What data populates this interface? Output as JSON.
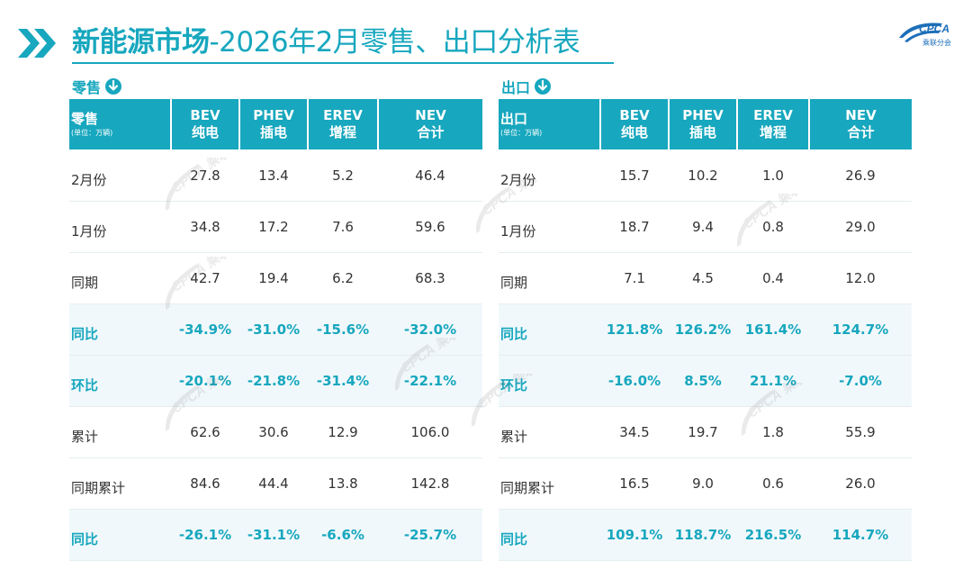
{
  "title": {
    "main": "新能源市场",
    "rest": "-2026年2月零售、出口分析表"
  },
  "logo": {
    "name": "CPCA",
    "sub": "乘联分会"
  },
  "watermark": "CPCA 乘联分会",
  "colors": {
    "accent": "#17a7be"
  },
  "retail": {
    "section_label": "零售",
    "header": {
      "title": "零售",
      "unit": "(单位：万辆)"
    },
    "columns": [
      {
        "code": "BEV",
        "name": "纯电"
      },
      {
        "code": "PHEV",
        "name": "插电"
      },
      {
        "code": "EREV",
        "name": "增程"
      },
      {
        "code": "NEV",
        "name": "合计"
      }
    ],
    "rows": [
      {
        "label": "2月份",
        "values": [
          "27.8",
          "13.4",
          "5.2",
          "46.4"
        ]
      },
      {
        "label": "1月份",
        "values": [
          "34.8",
          "17.2",
          "7.6",
          "59.6"
        ]
      },
      {
        "label": "同期",
        "values": [
          "42.7",
          "19.4",
          "6.2",
          "68.3"
        ]
      },
      {
        "label": "同比",
        "values": [
          "-34.9%",
          "-31.0%",
          "-15.6%",
          "-32.0%"
        ]
      },
      {
        "label": "环比",
        "values": [
          "-20.1%",
          "-21.8%",
          "-31.4%",
          "-22.1%"
        ]
      },
      {
        "label": "累计",
        "values": [
          "62.6",
          "30.6",
          "12.9",
          "106.0"
        ]
      },
      {
        "label": "同期累计",
        "values": [
          "84.6",
          "44.4",
          "13.8",
          "142.8"
        ]
      },
      {
        "label": "同比",
        "values": [
          "-26.1%",
          "-31.1%",
          "-6.6%",
          "-25.7%"
        ]
      }
    ]
  },
  "export": {
    "section_label": "出口",
    "header": {
      "title": "出口",
      "unit": "(单位：万辆)"
    },
    "columns": [
      {
        "code": "BEV",
        "name": "纯电"
      },
      {
        "code": "PHEV",
        "name": "插电"
      },
      {
        "code": "EREV",
        "name": "增程"
      },
      {
        "code": "NEV",
        "name": "合计"
      }
    ],
    "rows": [
      {
        "label": "2月份",
        "values": [
          "15.7",
          "10.2",
          "1.0",
          "26.9"
        ]
      },
      {
        "label": "1月份",
        "values": [
          "18.7",
          "9.4",
          "0.8",
          "29.0"
        ]
      },
      {
        "label": "同期",
        "values": [
          "7.1",
          "4.5",
          "0.4",
          "12.0"
        ]
      },
      {
        "label": "同比",
        "values": [
          "121.8%",
          "126.2%",
          "161.4%",
          "124.7%"
        ]
      },
      {
        "label": "环比",
        "values": [
          "-16.0%",
          "8.5%",
          "21.1%",
          "-7.0%"
        ]
      },
      {
        "label": "累计",
        "values": [
          "34.5",
          "19.7",
          "1.8",
          "55.9"
        ]
      },
      {
        "label": "同期累计",
        "values": [
          "16.5",
          "9.0",
          "0.6",
          "26.0"
        ]
      },
      {
        "label": "同比",
        "values": [
          "109.1%",
          "118.7%",
          "216.5%",
          "114.7%"
        ]
      }
    ]
  }
}
